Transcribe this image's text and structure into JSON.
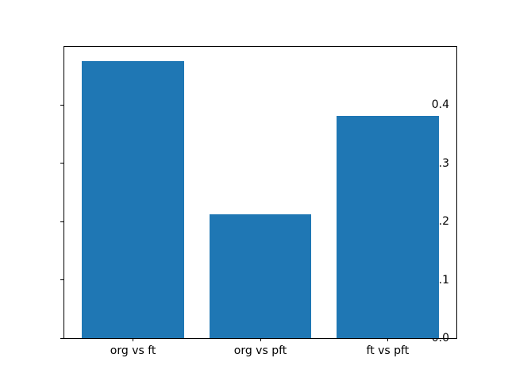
{
  "chart_data": {
    "type": "bar",
    "categories": [
      "org vs ft",
      "org vs pft",
      "ft vs pft"
    ],
    "values": [
      0.476,
      0.212,
      0.382
    ],
    "title": "",
    "xlabel": "",
    "ylabel": "",
    "ylim": [
      0,
      0.5
    ],
    "yticks": [
      0.0,
      0.1,
      0.2,
      0.3,
      0.4
    ],
    "ytick_labels": [
      "0.0",
      "0.1",
      "0.2",
      "0.3",
      "0.4"
    ],
    "grid": false,
    "legend": "none",
    "bar_color": "#1f77b4",
    "axes_color": "#000000",
    "background_color": "#ffffff"
  }
}
